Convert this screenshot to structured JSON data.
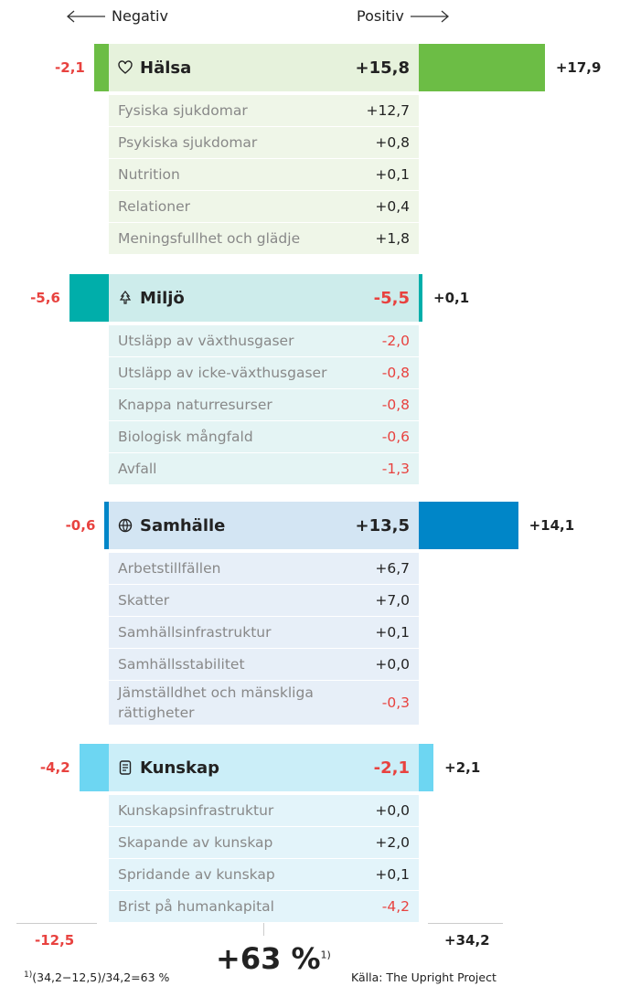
{
  "header": {
    "negative": "Negativ",
    "positive": "Positiv"
  },
  "sections": [
    {
      "name": "Hälsa",
      "total": "+15,8",
      "negative": {
        "value": -2.1,
        "label": "-2,1"
      },
      "positive": {
        "value": 17.9,
        "label": "+17,9"
      },
      "color": "#6cbd45",
      "head_bg": "#e6f2dc",
      "item_bg": "#eff6e8",
      "items": [
        {
          "label": "Fysiska sjukdomar",
          "value": "+12,7"
        },
        {
          "label": "Psykiska sjukdomar",
          "value": "+0,8"
        },
        {
          "label": "Nutrition",
          "value": "+0,1"
        },
        {
          "label": "Relationer",
          "value": "+0,4"
        },
        {
          "label": "Meningsfullhet och glädje",
          "value": "+1,8"
        }
      ]
    },
    {
      "name": "Miljö",
      "total": "-5,5",
      "negative": {
        "value": -5.6,
        "label": "-5,6"
      },
      "positive": {
        "value": 0.1,
        "label": "+0,1"
      },
      "color": "#00aeaa",
      "head_bg": "#cdeceb",
      "item_bg": "#e4f4f4",
      "items": [
        {
          "label": "Utsläpp av växthusgaser",
          "value": "-2,0"
        },
        {
          "label": "Utsläpp av icke-växthusgaser",
          "value": "-0,8"
        },
        {
          "label": "Knappa naturresurser",
          "value": "-0,8"
        },
        {
          "label": "Biologisk mångfald",
          "value": "-0,6"
        },
        {
          "label": "Avfall",
          "value": "-1,3"
        }
      ]
    },
    {
      "name": "Samhälle",
      "total": "+13,5",
      "negative": {
        "value": -0.6,
        "label": "-0,6"
      },
      "positive": {
        "value": 14.1,
        "label": "+14,1"
      },
      "color": "#0086c8",
      "head_bg": "#d3e5f3",
      "item_bg": "#e7eff8",
      "items": [
        {
          "label": "Arbetstillfällen",
          "value": "+6,7"
        },
        {
          "label": "Skatter",
          "value": "+7,0"
        },
        {
          "label": "Samhällsinfrastruktur",
          "value": "+0,1"
        },
        {
          "label": "Samhällsstabilitet",
          "value": "+0,0"
        },
        {
          "label": "Jämställdhet och mänskliga rättigheter",
          "value": "-0,3"
        }
      ]
    },
    {
      "name": "Kunskap",
      "total": "-2,1",
      "negative": {
        "value": -4.2,
        "label": "-4,2"
      },
      "positive": {
        "value": 2.1,
        "label": "+2,1"
      },
      "color": "#6dd6f2",
      "head_bg": "#cbeef8",
      "item_bg": "#e3f4fa",
      "items": [
        {
          "label": "Kunskapsinfrastruktur",
          "value": "+0,0"
        },
        {
          "label": "Skapande av kunskap",
          "value": "+2,0"
        },
        {
          "label": "Spridande av kunskap",
          "value": "+0,1"
        },
        {
          "label": "Brist på humankapital",
          "value": "-4,2"
        }
      ]
    }
  ],
  "footer": {
    "negative": "-12,5",
    "positive": "+34,2",
    "result": "+63 %",
    "result_note": "1)",
    "footnote_mark": "1)",
    "footnote": "(34,2−12,5)/34,2=63 %",
    "source": "Källa: The Upright Project"
  }
}
